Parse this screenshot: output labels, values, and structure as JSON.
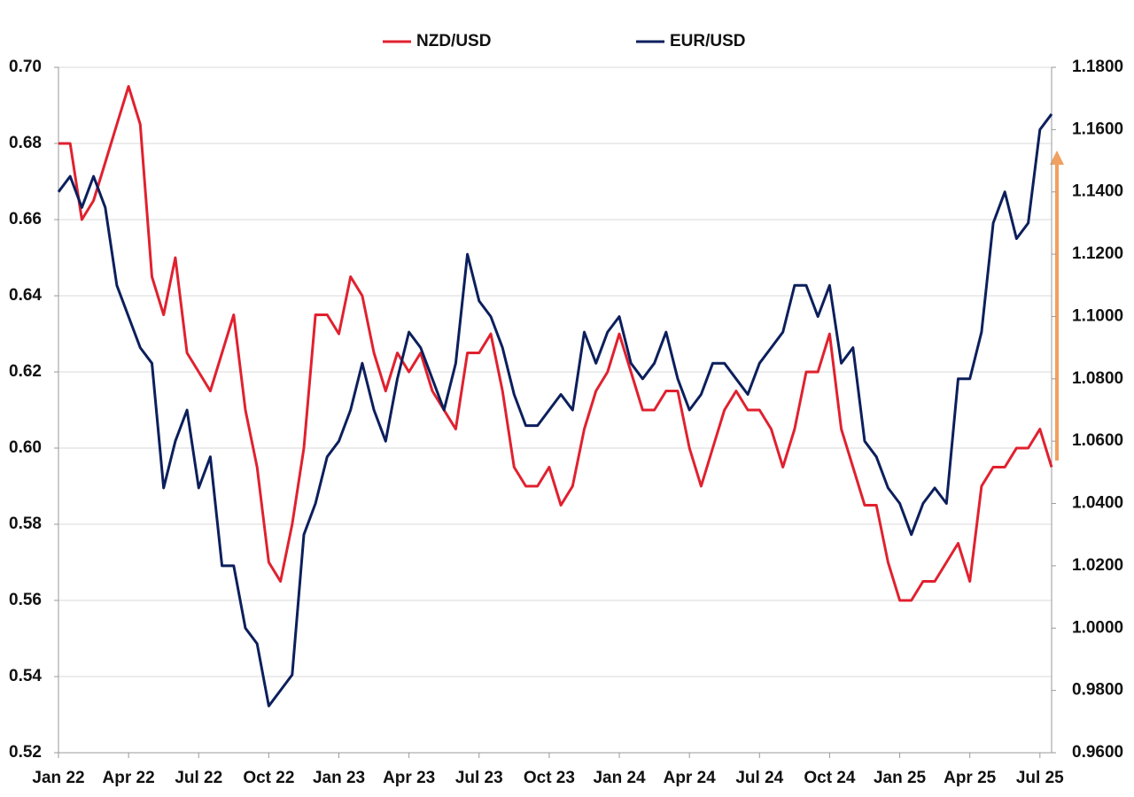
{
  "chart_data": {
    "type": "line",
    "categories": [
      "Jan 22",
      null,
      null,
      null,
      null,
      null,
      "Apr 22",
      null,
      null,
      null,
      null,
      null,
      "Jul 22",
      null,
      null,
      null,
      null,
      null,
      "Oct 22",
      null,
      null,
      null,
      null,
      null,
      "Jan 23",
      null,
      null,
      null,
      null,
      null,
      "Apr 23",
      null,
      null,
      null,
      null,
      null,
      "Jul 23",
      null,
      null,
      null,
      null,
      null,
      "Oct 23",
      null,
      null,
      null,
      null,
      null,
      "Jan 24",
      null,
      null,
      null,
      null,
      null,
      "Apr 24",
      null,
      null,
      null,
      null,
      null,
      "Jul 24",
      null,
      null,
      null,
      null,
      null,
      "Oct 24",
      null,
      null,
      null,
      null,
      null,
      "Jan 25",
      null,
      null,
      null,
      null,
      null,
      "Apr 25",
      null,
      null,
      null,
      null,
      null,
      "Jul 25",
      null
    ],
    "series": [
      {
        "name": "NZD/USD",
        "color": "#e0212f",
        "values": [
          0.68,
          0.68,
          0.66,
          0.665,
          0.675,
          0.685,
          0.695,
          0.685,
          0.645,
          0.635,
          0.65,
          0.625,
          0.62,
          0.615,
          0.625,
          0.635,
          0.61,
          0.595,
          0.57,
          0.565,
          0.58,
          0.6,
          0.635,
          0.635,
          0.63,
          0.645,
          0.64,
          0.625,
          0.615,
          0.625,
          0.62,
          0.625,
          0.615,
          0.61,
          0.605,
          0.625,
          0.625,
          0.63,
          0.615,
          0.595,
          0.59,
          0.59,
          0.595,
          0.585,
          0.59,
          0.605,
          0.615,
          0.62,
          0.63,
          0.62,
          0.61,
          0.61,
          0.615,
          0.615,
          0.6,
          0.59,
          0.6,
          0.61,
          0.615,
          0.61,
          0.61,
          0.605,
          0.595,
          0.605,
          0.62,
          0.62,
          0.63,
          0.605,
          0.595,
          0.585,
          0.585,
          0.57,
          0.56,
          0.56,
          0.565,
          0.565,
          0.57,
          0.575,
          0.565,
          0.59,
          0.595,
          0.595,
          0.6,
          0.6,
          0.605,
          0.595
        ]
      },
      {
        "name": "EUR/USD",
        "color": "#0c1f5c",
        "axis": "y2",
        "values": [
          1.14,
          1.145,
          1.135,
          1.145,
          1.135,
          1.11,
          1.1,
          1.09,
          1.085,
          1.045,
          1.06,
          1.07,
          1.045,
          1.055,
          1.02,
          1.02,
          1.0,
          0.995,
          0.975,
          0.98,
          0.985,
          1.03,
          1.04,
          1.055,
          1.06,
          1.07,
          1.085,
          1.07,
          1.06,
          1.08,
          1.095,
          1.09,
          1.08,
          1.07,
          1.085,
          1.12,
          1.105,
          1.1,
          1.09,
          1.075,
          1.065,
          1.065,
          1.07,
          1.075,
          1.07,
          1.095,
          1.085,
          1.095,
          1.1,
          1.085,
          1.08,
          1.085,
          1.095,
          1.08,
          1.07,
          1.075,
          1.085,
          1.085,
          1.08,
          1.075,
          1.085,
          1.09,
          1.095,
          1.11,
          1.11,
          1.1,
          1.11,
          1.085,
          1.09,
          1.06,
          1.055,
          1.045,
          1.04,
          1.03,
          1.04,
          1.045,
          1.04,
          1.08,
          1.08,
          1.095,
          1.13,
          1.14,
          1.125,
          1.13,
          1.16,
          1.165
        ]
      }
    ],
    "ylim": [
      0.52,
      0.7
    ],
    "yticks": [
      0.52,
      0.54,
      0.56,
      0.58,
      {
        "value": 0.6,
        "label": "0.60"
      },
      0.62,
      0.64,
      0.66,
      0.68,
      {
        "value": 0.7,
        "label": "0.70"
      }
    ],
    "y2lim": [
      0.96,
      1.18
    ],
    "y2ticks": [
      {
        "value": 0.96,
        "label": "0.9600"
      },
      {
        "value": 0.98,
        "label": "0.9800"
      },
      {
        "value": 1.0,
        "label": "1.0000"
      },
      {
        "value": 1.02,
        "label": "1.0200"
      },
      {
        "value": 1.04,
        "label": "1.0400"
      },
      {
        "value": 1.06,
        "label": "1.0600"
      },
      {
        "value": 1.08,
        "label": "1.0800"
      },
      {
        "value": 1.1,
        "label": "1.1000"
      },
      {
        "value": 1.12,
        "label": "1.1200"
      },
      {
        "value": 1.14,
        "label": "1.1400"
      },
      {
        "value": 1.16,
        "label": "1.1600"
      },
      {
        "value": 1.18,
        "label": "1.1800"
      }
    ],
    "grid": true,
    "legend": "top"
  }
}
